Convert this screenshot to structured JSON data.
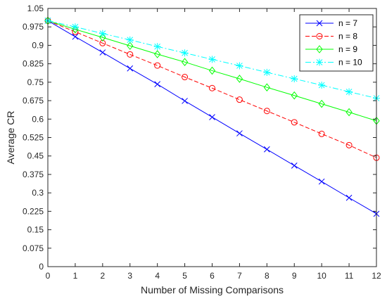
{
  "chart_data": {
    "type": "line",
    "title": "",
    "xlabel": "Number of Missing Comparisons",
    "ylabel": "Average CR",
    "xlim": [
      0,
      12
    ],
    "ylim": [
      0,
      1.05
    ],
    "grid": false,
    "legend_position": "top-right",
    "x": [
      0,
      1,
      2,
      3,
      4,
      5,
      6,
      7,
      8,
      9,
      10,
      11,
      12
    ],
    "x_ticks": [
      "0",
      "1",
      "2",
      "3",
      "4",
      "5",
      "6",
      "7",
      "8",
      "9",
      "10",
      "11",
      "12"
    ],
    "y_ticks": [
      "0",
      "0.075",
      "0.15",
      "0.225",
      "0.3",
      "0.375",
      "0.45",
      "0.525",
      "0.6",
      "0.675",
      "0.75",
      "0.825",
      "0.9",
      "0.975",
      "1.05"
    ],
    "series": [
      {
        "name": "n = 7",
        "color": "#0000ff",
        "line_style": "solid",
        "marker": "x",
        "values": [
          1.0,
          0.935,
          0.871,
          0.806,
          0.742,
          0.674,
          0.608,
          0.542,
          0.477,
          0.411,
          0.346,
          0.28,
          0.215
        ]
      },
      {
        "name": "n = 8",
        "color": "#ff0000",
        "line_style": "dashed",
        "marker": "circle",
        "values": [
          1.0,
          0.955,
          0.909,
          0.863,
          0.818,
          0.771,
          0.726,
          0.679,
          0.633,
          0.587,
          0.54,
          0.494,
          0.443
        ]
      },
      {
        "name": "n = 9",
        "color": "#00ff00",
        "line_style": "solid",
        "marker": "diamond",
        "values": [
          1.0,
          0.965,
          0.932,
          0.898,
          0.864,
          0.832,
          0.797,
          0.764,
          0.729,
          0.696,
          0.662,
          0.628,
          0.593
        ]
      },
      {
        "name": "n = 10",
        "color": "#00ffff",
        "line_style": "dashdot",
        "marker": "star",
        "values": [
          1.0,
          0.975,
          0.948,
          0.922,
          0.895,
          0.869,
          0.843,
          0.817,
          0.79,
          0.764,
          0.738,
          0.711,
          0.685
        ]
      }
    ]
  }
}
